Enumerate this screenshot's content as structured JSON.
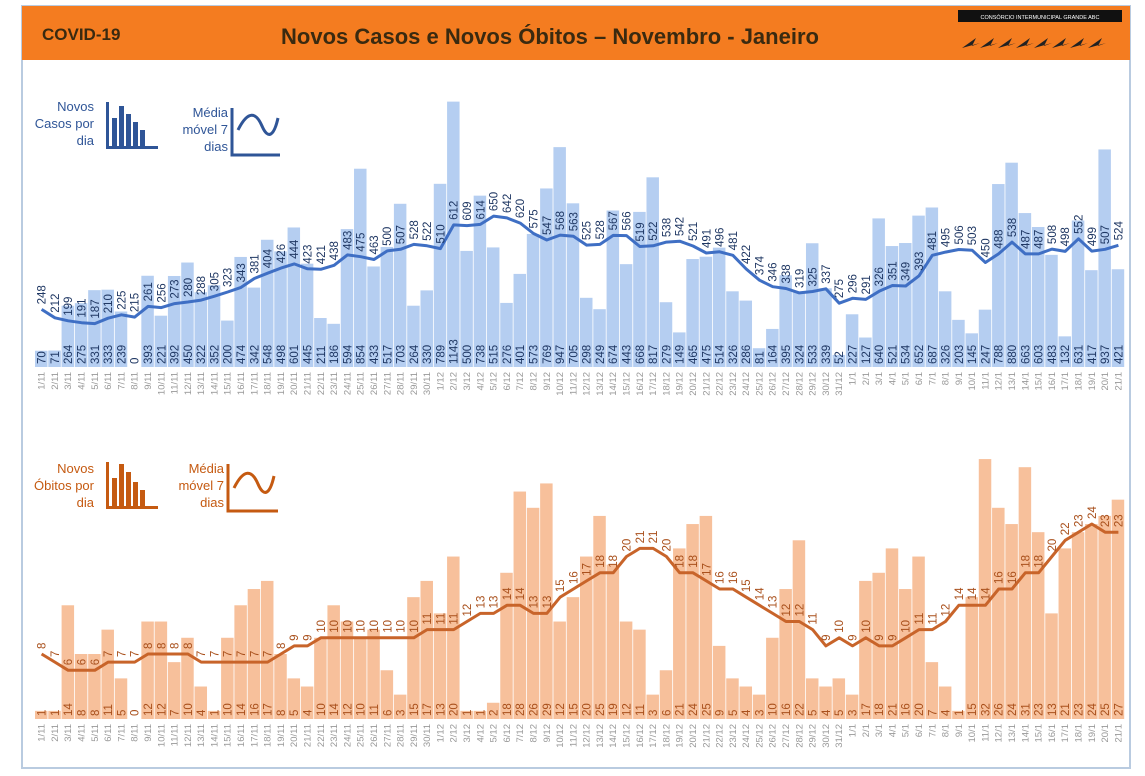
{
  "header": {
    "left": "COVID-19",
    "title": "Novos Casos e Novos Óbitos – Novembro - Janeiro",
    "logo": "CONSÓRCIO INTERMUNICIPAL GRANDE ABC"
  },
  "chart_data": [
    {
      "type": "bar",
      "ylim": [
        0,
        1150
      ],
      "categories": [
        "1/11",
        "2/11",
        "3/11",
        "4/11",
        "5/11",
        "6/11",
        "7/11",
        "8/11",
        "9/11",
        "10/11",
        "11/11",
        "12/11",
        "13/11",
        "14/11",
        "15/11",
        "16/11",
        "17/11",
        "18/11",
        "19/11",
        "20/11",
        "21/11",
        "22/11",
        "23/11",
        "24/11",
        "25/11",
        "26/11",
        "27/11",
        "28/11",
        "29/11",
        "30/11",
        "1/12",
        "2/12",
        "3/12",
        "4/12",
        "5/12",
        "6/12",
        "7/12",
        "8/12",
        "9/12",
        "10/12",
        "11/12",
        "12/12",
        "13/12",
        "14/12",
        "15/12",
        "16/12",
        "17/12",
        "18/12",
        "19/12",
        "20/12",
        "21/12",
        "22/12",
        "23/12",
        "24/12",
        "25/12",
        "26/12",
        "27/12",
        "28/12",
        "29/12",
        "30/12",
        "31/12",
        "1/1",
        "2/1",
        "3/1",
        "4/1",
        "5/1",
        "6/1",
        "7/1",
        "8/1",
        "9/1",
        "10/1",
        "11/1",
        "12/1",
        "13/1",
        "14/1",
        "15/1",
        "16/1",
        "17/1",
        "18/1",
        "19/1",
        "20/1",
        "21/1"
      ],
      "series": [
        {
          "name": "Novos Casos por dia",
          "color": "#a8c6ee",
          "values": [
            70,
            71,
            264,
            275,
            331,
            333,
            239,
            0,
            393,
            221,
            392,
            450,
            322,
            352,
            200,
            474,
            342,
            548,
            498,
            601,
            445,
            211,
            186,
            594,
            854,
            433,
            517,
            703,
            264,
            330,
            789,
            1143,
            500,
            738,
            515,
            276,
            401,
            573,
            769,
            947,
            705,
            298,
            249,
            674,
            443,
            668,
            817,
            279,
            149,
            465,
            475,
            514,
            326,
            286,
            81,
            164,
            395,
            324,
            533,
            339,
            52,
            227,
            127,
            640,
            521,
            534,
            652,
            687,
            326,
            203,
            145,
            247,
            788,
            880,
            663,
            603,
            483,
            132,
            631,
            417,
            937,
            421
          ]
        },
        {
          "name": "Média móvel 7 dias",
          "color": "#3f6fc4",
          "values": [
            248,
            212,
            199,
            191,
            187,
            210,
            225,
            215,
            261,
            256,
            273,
            280,
            288,
            305,
            323,
            343,
            381,
            404,
            426,
            444,
            423,
            421,
            438,
            483,
            475,
            463,
            500,
            507,
            528,
            522,
            510,
            612,
            609,
            614,
            650,
            642,
            620,
            575,
            547,
            568,
            563,
            525,
            528,
            567,
            566,
            519,
            522,
            538,
            542,
            521,
            491,
            496,
            481,
            422,
            374,
            346,
            338,
            319,
            325,
            337,
            275,
            296,
            291,
            326,
            351,
            349,
            393,
            481,
            495,
            506,
            503,
            450,
            488,
            538,
            487,
            487,
            508,
            498,
            552,
            499,
            507,
            524
          ]
        }
      ]
    },
    {
      "type": "bar",
      "ylim": [
        0,
        32.5
      ],
      "categories": [
        "1/11",
        "2/11",
        "3/11",
        "4/11",
        "5/11",
        "6/11",
        "7/11",
        "8/11",
        "9/11",
        "10/11",
        "11/11",
        "12/11",
        "13/11",
        "14/11",
        "15/11",
        "16/11",
        "17/11",
        "18/11",
        "19/11",
        "20/11",
        "21/11",
        "22/11",
        "23/11",
        "24/11",
        "25/11",
        "26/11",
        "27/11",
        "28/11",
        "29/11",
        "30/11",
        "1/12",
        "2/12",
        "3/12",
        "4/12",
        "5/12",
        "6/12",
        "7/12",
        "8/12",
        "9/12",
        "10/12",
        "11/12",
        "12/12",
        "13/12",
        "14/12",
        "15/12",
        "16/12",
        "17/12",
        "18/12",
        "19/12",
        "20/12",
        "21/12",
        "22/12",
        "23/12",
        "24/12",
        "25/12",
        "26/12",
        "27/12",
        "28/12",
        "29/12",
        "30/12",
        "31/12",
        "1/1",
        "2/1",
        "3/1",
        "4/1",
        "5/1",
        "6/1",
        "7/1",
        "8/1",
        "9/1",
        "10/1",
        "11/1",
        "12/1",
        "13/1",
        "14/1",
        "15/1",
        "16/1",
        "17/1",
        "18/1",
        "19/1",
        "20/1",
        "21/1"
      ],
      "series": [
        {
          "name": "Novos Óbitos por dia",
          "color": "#f6b58a",
          "values": [
            1,
            1,
            14,
            8,
            8,
            11,
            5,
            0,
            12,
            12,
            7,
            10,
            4,
            1,
            10,
            14,
            16,
            17,
            8,
            5,
            4,
            10,
            14,
            12,
            10,
            11,
            6,
            3,
            15,
            17,
            13,
            20,
            1,
            1,
            2,
            18,
            28,
            26,
            29,
            12,
            15,
            20,
            25,
            19,
            12,
            11,
            3,
            6,
            21,
            24,
            25,
            9,
            5,
            4,
            3,
            10,
            16,
            22,
            5,
            4,
            5,
            3,
            17,
            18,
            21,
            16,
            20,
            7,
            4,
            1,
            15,
            32,
            26,
            24,
            31,
            23,
            13,
            21,
            23,
            24,
            25,
            27
          ]
        },
        {
          "name": "Média móvel 7 dias",
          "color": "#c8642a",
          "values": [
            8,
            7,
            6,
            6,
            6,
            7,
            7,
            7,
            8,
            8,
            8,
            8,
            7,
            7,
            7,
            7,
            7,
            7,
            8,
            9,
            9,
            10,
            10,
            10,
            10,
            10,
            10,
            10,
            10,
            11,
            11,
            11,
            12,
            13,
            13,
            14,
            14,
            13,
            13,
            15,
            16,
            17,
            18,
            18,
            20,
            21,
            21,
            20,
            18,
            18,
            17,
            16,
            16,
            15,
            14,
            13,
            12,
            12,
            11,
            9,
            10,
            9,
            10,
            9,
            9,
            10,
            11,
            11,
            12,
            14,
            14,
            14,
            16,
            16,
            18,
            18,
            20,
            22,
            23,
            24,
            23,
            23
          ]
        }
      ]
    }
  ]
}
